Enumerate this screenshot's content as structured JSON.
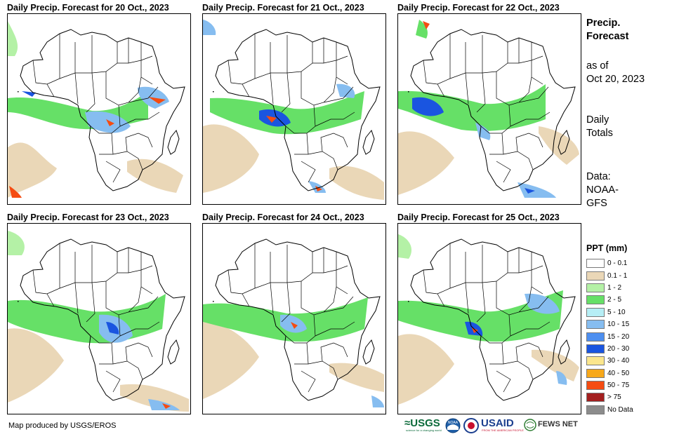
{
  "panels": [
    {
      "title": "Daily Precip. Forecast for 20 Oct., 2023"
    },
    {
      "title": "Daily Precip. Forecast for 21 Oct., 2023"
    },
    {
      "title": "Daily Precip. Forecast for 22 Oct., 2023"
    },
    {
      "title": "Daily Precip. Forecast for 23 Oct., 2023"
    },
    {
      "title": "Daily Precip. Forecast for 24 Oct., 2023"
    },
    {
      "title": "Daily Precip. Forecast for 25 Oct., 2023"
    }
  ],
  "sidebar": {
    "heading_line1": "Precip.",
    "heading_line2": "Forecast",
    "asof_line1": "as of",
    "asof_line2": "Oct 20, 2023",
    "totals_line1": "Daily",
    "totals_line2": "Totals",
    "data_line1": "Data:",
    "data_line2": "NOAA-",
    "data_line3": "GFS"
  },
  "legend": {
    "title": "PPT (mm)",
    "items": [
      {
        "label": "0 - 0.1",
        "color": "#ffffff"
      },
      {
        "label": "0.1 - 1",
        "color": "#ead7b7"
      },
      {
        "label": "1 - 2",
        "color": "#b4f1a6"
      },
      {
        "label": "2 - 5",
        "color": "#66e067"
      },
      {
        "label": "5 - 10",
        "color": "#b6eef5"
      },
      {
        "label": "10 - 15",
        "color": "#86bdf0"
      },
      {
        "label": "15 - 20",
        "color": "#4d8ff0"
      },
      {
        "label": "20 - 30",
        "color": "#1a55e0"
      },
      {
        "label": "30 - 40",
        "color": "#fbe68d"
      },
      {
        "label": "40 - 50",
        "color": "#f7a81a"
      },
      {
        "label": "50 - 75",
        "color": "#f54c12"
      },
      {
        "label": "> 75",
        "color": "#a31f1f"
      },
      {
        "label": "No Data",
        "color": "#8c8c8c"
      }
    ]
  },
  "footer": {
    "credit": "Map produced by USGS/EROS",
    "logos": {
      "usgs": "≈USGS",
      "usgs_tagline": "science for a changing world",
      "noaa": "NOAA",
      "usaid": "USAID",
      "usaid_tagline": "FROM THE AMERICAN PEOPLE",
      "fewsnet": "FEWS NET"
    }
  },
  "colors": {
    "sand": "#ead7b7",
    "light_green": "#b4f1a6",
    "green": "#66e067",
    "light_blue": "#86bdf0",
    "blue": "#1a55e0",
    "red": "#f54c12",
    "border": "#000000"
  }
}
